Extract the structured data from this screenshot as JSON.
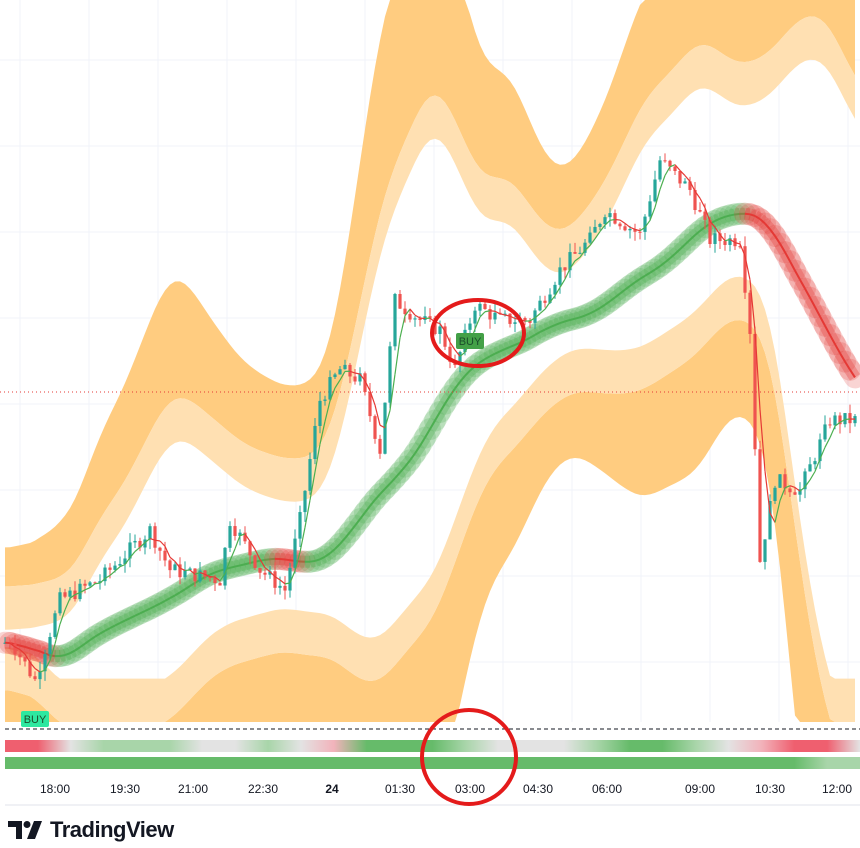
{
  "chart_data": {
    "type": "candlestick",
    "title": "",
    "xlabel": "",
    "ylabel": "",
    "price_anchors": [
      [
        0,
        11
      ],
      [
        1,
        11.4
      ],
      [
        6,
        5.8
      ],
      [
        11,
        16.9
      ],
      [
        19,
        19.7
      ],
      [
        29,
        26.6
      ],
      [
        33,
        21.1
      ],
      [
        43,
        19.7
      ],
      [
        45,
        28.0
      ],
      [
        51,
        21.1
      ],
      [
        56,
        18.3
      ],
      [
        59,
        28.0
      ],
      [
        63,
        44.6
      ],
      [
        67,
        48.8
      ],
      [
        71,
        47.4
      ],
      [
        75,
        37.7
      ],
      [
        78,
        58.4
      ],
      [
        83,
        55.7
      ],
      [
        87,
        54.3
      ],
      [
        90,
        48.8
      ],
      [
        94,
        57.8
      ],
      [
        99,
        55.7
      ],
      [
        105,
        55.7
      ],
      [
        111,
        62.6
      ],
      [
        117,
        66.8
      ],
      [
        120,
        70.9
      ],
      [
        127,
        67.5
      ],
      [
        131,
        77.8
      ],
      [
        137,
        73.7
      ],
      [
        141,
        66.8
      ],
      [
        147,
        66.8
      ],
      [
        149,
        54.3
      ],
      [
        151,
        22.4
      ],
      [
        154,
        33.5
      ],
      [
        159,
        32.1
      ],
      [
        165,
        41.8
      ],
      [
        171,
        41.8
      ]
    ],
    "ylim": [
      0,
      100
    ],
    "candle_count": 171,
    "x_ticks": [
      {
        "label": "18:00",
        "index": 10
      },
      {
        "label": "19:30",
        "index": 24
      },
      {
        "label": "21:00",
        "index": 37.6
      },
      {
        "label": "22:30",
        "index": 51.6
      },
      {
        "label": "24",
        "index": 65.4,
        "bold": true
      },
      {
        "label": "01:30",
        "index": 79
      },
      {
        "label": "03:00",
        "index": 93
      },
      {
        "label": "04:30",
        "index": 106.6
      },
      {
        "label": "06:00",
        "index": 120.4
      },
      {
        "label": "09:00",
        "index": 139
      },
      {
        "label": "10:30",
        "index": 153
      },
      {
        "label": "12:00",
        "index": 166.4
      }
    ],
    "signals": [
      {
        "label": "BUY",
        "index": 6,
        "style": "light"
      },
      {
        "label": "BUY",
        "index": 93,
        "style": "dark"
      }
    ],
    "last_price_line": 45.7,
    "annotations": [
      {
        "type": "circle",
        "index": 94.5,
        "price": 54
      },
      {
        "type": "circle",
        "index": 93,
        "price": -5
      }
    ],
    "strip_top": [
      "red",
      "red",
      "neutral",
      "green-light",
      "green-light",
      "green-light",
      "neutral",
      "neutral",
      "green-light",
      "neutral",
      "red-light",
      "green",
      "green",
      "green",
      "green-light",
      "neutral",
      "neutral",
      "neutral",
      "green-light",
      "green",
      "green",
      "green-light",
      "neutral",
      "red-light",
      "red",
      "red",
      "neutral"
    ],
    "strip_bottom": [
      "green",
      "green",
      "green",
      "green",
      "green",
      "green",
      "green",
      "green",
      "green",
      "green",
      "green",
      "green",
      "green",
      "green",
      "green",
      "green",
      "green",
      "green",
      "green",
      "green",
      "green",
      "green",
      "green",
      "green",
      "green",
      "green-light",
      "green-light"
    ],
    "colors": {
      "up": "#26a69a",
      "down": "#ef5350",
      "ma_up": "#4caf50",
      "ma_down": "#e53935",
      "band": "#ffcc80",
      "band_inner": "#ffe0b2",
      "strip_green": "#66bb6a",
      "strip_red": "#ef5f6f",
      "strip_neutral": "#e3e3e3"
    }
  },
  "brand": {
    "name": "TradingView"
  }
}
